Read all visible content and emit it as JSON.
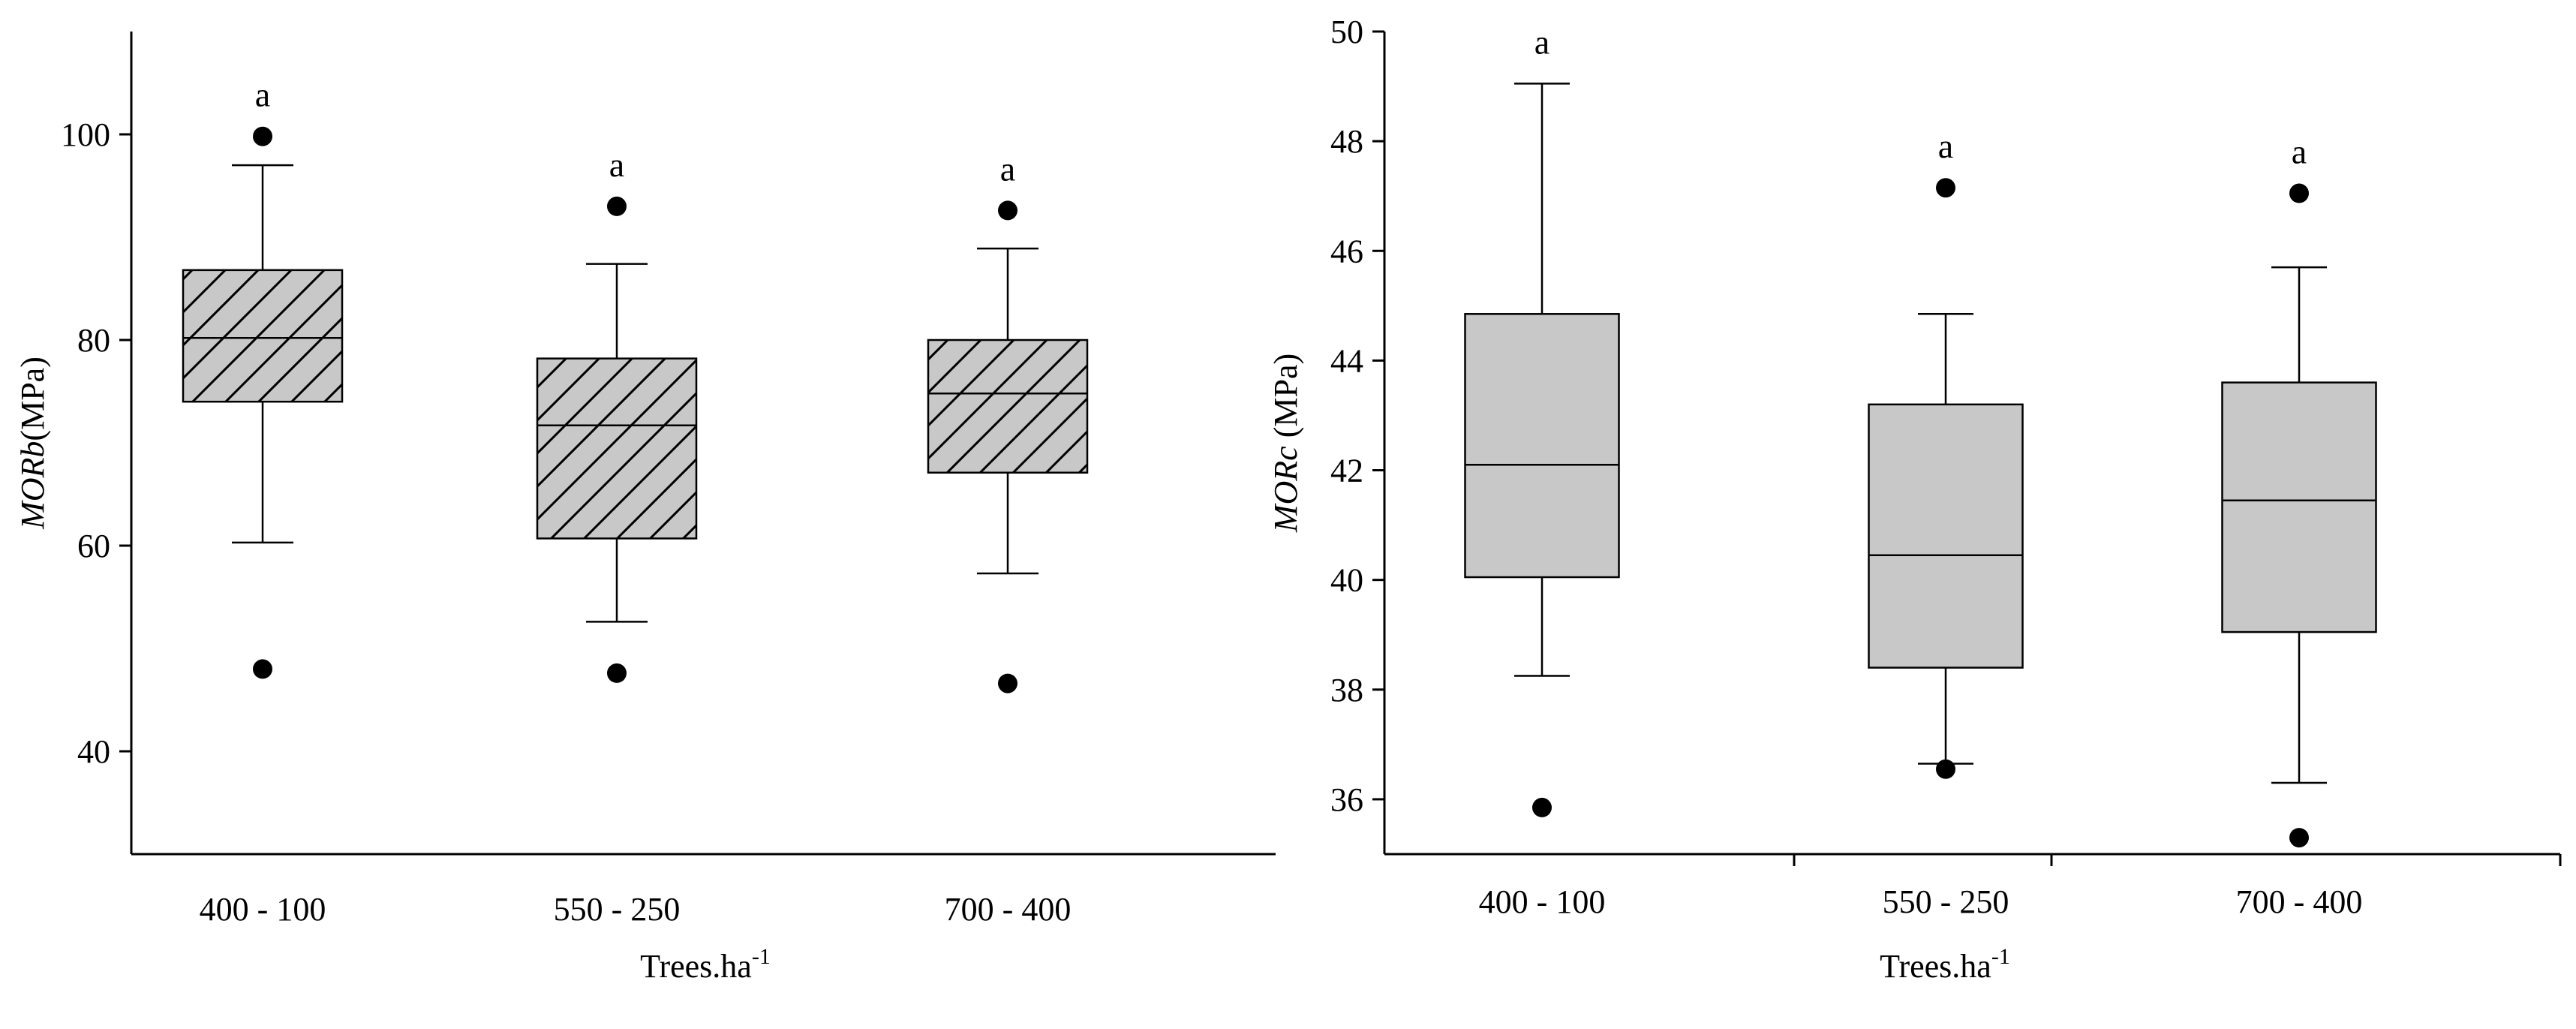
{
  "chart_data": [
    {
      "type": "box",
      "title": "",
      "xlabel_main": "Trees.ha",
      "xlabel_sup": "-1",
      "ylabel_italic": "MORb",
      "ylabel_rest": "(MPa)",
      "ylim": [
        30,
        110
      ],
      "yticks": [
        40,
        60,
        80,
        100
      ],
      "hatched": true,
      "grid": false,
      "box_color": "#c8c8c8",
      "categories": [
        "400 - 100",
        "550 - 250",
        "700 - 400"
      ],
      "groups": [
        {
          "category": "400 - 100",
          "q1": 74,
          "median": 80.2,
          "q3": 86.8,
          "whisker_low": 60.3,
          "whisker_high": 97,
          "outliers": [
            99.8,
            48
          ],
          "letter": "a"
        },
        {
          "category": "550 - 250",
          "q1": 60.7,
          "median": 71.7,
          "q3": 78.2,
          "whisker_low": 52.6,
          "whisker_high": 87.4,
          "outliers": [
            93,
            47.6
          ],
          "letter": "a"
        },
        {
          "category": "700 - 400",
          "q1": 67.1,
          "median": 74.8,
          "q3": 80,
          "whisker_low": 57.3,
          "whisker_high": 88.9,
          "outliers": [
            92.6,
            46.6
          ],
          "letter": "a"
        }
      ]
    },
    {
      "type": "box",
      "title": "",
      "xlabel_main": "Trees.ha",
      "xlabel_sup": "-1",
      "ylabel_italic": "MORc",
      "ylabel_rest": " (MPa)",
      "ylim": [
        35,
        50
      ],
      "yticks": [
        36,
        38,
        40,
        42,
        44,
        46,
        48,
        50
      ],
      "hatched": false,
      "grid": false,
      "box_color": "#c8c8c8",
      "categories": [
        "400 - 100",
        "550 - 250",
        "700 - 400"
      ],
      "groups": [
        {
          "category": "400 - 100",
          "q1": 40.05,
          "median": 42.1,
          "q3": 44.85,
          "whisker_low": 38.25,
          "whisker_high": 49.05,
          "outliers": [
            35.85
          ],
          "letter": "a"
        },
        {
          "category": "550 - 250",
          "q1": 38.4,
          "median": 40.45,
          "q3": 43.2,
          "whisker_low": 36.65,
          "whisker_high": 44.85,
          "outliers": [
            47.15,
            36.55
          ],
          "letter": "a"
        },
        {
          "category": "700 - 400",
          "q1": 39.05,
          "median": 41.45,
          "q3": 43.6,
          "whisker_low": 36.3,
          "whisker_high": 45.7,
          "outliers": [
            47.05,
            35.3
          ],
          "letter": "a"
        }
      ]
    }
  ]
}
